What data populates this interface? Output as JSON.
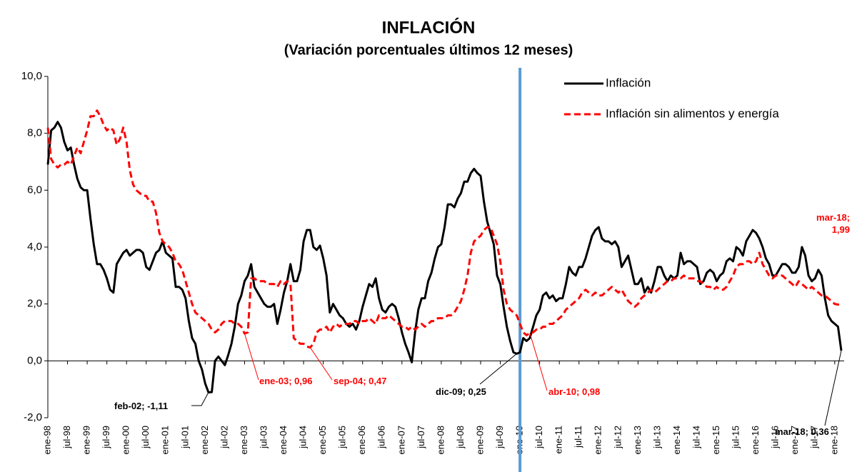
{
  "chart_data": {
    "type": "line",
    "title": "INFLACIÓN",
    "subtitle": "(Variación porcentuales últimos 12 meses)",
    "categories": [
      "ene-98",
      null,
      null,
      null,
      null,
      null,
      "jul-98",
      null,
      null,
      null,
      null,
      null,
      "ene-99",
      null,
      null,
      null,
      null,
      null,
      "jul-99",
      null,
      null,
      null,
      null,
      null,
      "ene-00",
      null,
      null,
      null,
      null,
      null,
      "jul-00",
      null,
      null,
      null,
      null,
      null,
      "ene-01",
      null,
      null,
      null,
      null,
      null,
      "jul-01",
      null,
      null,
      null,
      null,
      null,
      "ene-02",
      null,
      null,
      null,
      null,
      null,
      "jul-02",
      null,
      null,
      null,
      null,
      null,
      "ene-03",
      null,
      null,
      null,
      null,
      null,
      "jul-03",
      null,
      null,
      null,
      null,
      null,
      "ene-04",
      null,
      null,
      null,
      null,
      null,
      "jul-04",
      null,
      null,
      null,
      null,
      null,
      "ene-05",
      null,
      null,
      null,
      null,
      null,
      "jul-05",
      null,
      null,
      null,
      null,
      null,
      "ene-06",
      null,
      null,
      null,
      null,
      null,
      "jul-06",
      null,
      null,
      null,
      null,
      null,
      "ene-07",
      null,
      null,
      null,
      null,
      null,
      "jul-07",
      null,
      null,
      null,
      null,
      null,
      "ene-08",
      null,
      null,
      null,
      null,
      null,
      "jul-08",
      null,
      null,
      null,
      null,
      null,
      "ene-09",
      null,
      null,
      null,
      null,
      null,
      "jul-09",
      null,
      null,
      null,
      null,
      null,
      "ene-10",
      null,
      null,
      null,
      null,
      null,
      "jul-10",
      null,
      null,
      null,
      null,
      null,
      "ene-11",
      null,
      null,
      null,
      null,
      null,
      "jul-11",
      null,
      null,
      null,
      null,
      null,
      "ene-12",
      null,
      null,
      null,
      null,
      null,
      "jul-12",
      null,
      null,
      null,
      null,
      null,
      "ene-13",
      null,
      null,
      null,
      null,
      null,
      "jul-13",
      null,
      null,
      null,
      null,
      null,
      "ene-14",
      null,
      null,
      null,
      null,
      null,
      "jul-14",
      null,
      null,
      null,
      null,
      null,
      "ene-15",
      null,
      null,
      null,
      null,
      null,
      "jul-15",
      null,
      null,
      null,
      null,
      null,
      "ene-16",
      null,
      null,
      null,
      null,
      null,
      "jul-16",
      null,
      null,
      null,
      null,
      null,
      "ene-17",
      null,
      null,
      null,
      null,
      null,
      "jul-17",
      null,
      null,
      null,
      null,
      null,
      "ene-18",
      null,
      null
    ],
    "series": [
      {
        "name": "Inflación",
        "color": "#000000",
        "dash": false,
        "values": [
          6.9,
          8.1,
          8.2,
          8.4,
          8.2,
          7.7,
          7.4,
          7.5,
          6.9,
          6.4,
          6.1,
          6.0,
          6.0,
          5.0,
          4.1,
          3.4,
          3.4,
          3.2,
          2.9,
          2.5,
          2.4,
          3.4,
          3.6,
          3.8,
          3.9,
          3.7,
          3.8,
          3.9,
          3.9,
          3.8,
          3.3,
          3.2,
          3.5,
          3.8,
          3.9,
          4.2,
          3.8,
          3.7,
          3.6,
          2.6,
          2.6,
          2.5,
          2.2,
          1.4,
          0.8,
          0.6,
          0,
          -0.3,
          -0.8,
          -1.11,
          -1.1,
          0,
          0.15,
          0,
          -0.15,
          0.2,
          0.6,
          1.2,
          2.0,
          2.3,
          2.8,
          3.0,
          3.4,
          2.6,
          2.4,
          2.2,
          2.0,
          1.9,
          1.9,
          2.0,
          1.3,
          1.8,
          2.4,
          2.8,
          3.4,
          2.8,
          2.8,
          3.2,
          4.2,
          4.6,
          4.6,
          4.0,
          3.9,
          4.05,
          3.6,
          3.0,
          1.7,
          2.0,
          1.8,
          1.6,
          1.5,
          1.3,
          1.2,
          1.3,
          1.1,
          1.4,
          1.9,
          2.3,
          2.7,
          2.6,
          2.9,
          2.2,
          1.8,
          1.7,
          1.9,
          2.0,
          1.9,
          1.5,
          1.0,
          0.6,
          0.3,
          -0.05,
          1.0,
          1.8,
          2.2,
          2.2,
          2.8,
          3.1,
          3.6,
          4.0,
          4.1,
          4.7,
          5.5,
          5.5,
          5.4,
          5.7,
          5.9,
          6.3,
          6.3,
          6.6,
          6.75,
          6.6,
          6.5,
          5.6,
          4.9,
          4.5,
          4.1,
          3.0,
          2.7,
          1.9,
          1.2,
          0.7,
          0.3,
          0.25,
          0.3,
          0.8,
          0.7,
          0.8,
          1.2,
          1.6,
          1.8,
          2.3,
          2.4,
          2.2,
          2.3,
          2.1,
          2.2,
          2.2,
          2.7,
          3.3,
          3.1,
          3.0,
          3.3,
          3.3,
          3.6,
          4.0,
          4.4,
          4.6,
          4.7,
          4.3,
          4.2,
          4.2,
          4.1,
          4.2,
          4.0,
          3.3,
          3.5,
          3.7,
          3.2,
          2.7,
          2.7,
          2.9,
          2.4,
          2.6,
          2.4,
          2.8,
          3.3,
          3.3,
          3.0,
          2.8,
          3.0,
          2.9,
          3.0,
          3.8,
          3.4,
          3.5,
          3.5,
          3.4,
          3.3,
          2.7,
          2.8,
          3.1,
          3.2,
          3.1,
          2.8,
          3.0,
          3.1,
          3.5,
          3.6,
          3.5,
          4.0,
          3.9,
          3.7,
          4.2,
          4.4,
          4.6,
          4.5,
          4.3,
          4.0,
          3.6,
          3.4,
          3.0,
          3.0,
          3.2,
          3.4,
          3.4,
          3.3,
          3.1,
          3.1,
          3.3,
          4.0,
          3.7,
          3.0,
          2.8,
          2.9,
          3.2,
          3.0,
          2.2,
          1.6,
          1.4,
          1.3,
          1.2,
          0.36
        ],
        "value_labels": [
          null,
          null,
          null,
          null,
          null,
          null,
          null,
          null,
          null,
          null,
          null,
          null,
          null,
          null,
          null,
          null,
          null,
          null,
          null,
          null,
          null,
          null,
          null,
          null,
          null,
          null,
          null,
          null,
          null,
          null,
          null,
          null,
          null,
          null,
          null,
          null,
          null,
          null,
          null,
          null,
          null,
          null,
          null,
          null,
          null,
          null,
          null,
          null,
          null,
          "feb-02; -1,11",
          null,
          null,
          null,
          null,
          null,
          null,
          null,
          null,
          null,
          null,
          null,
          null,
          null,
          null,
          null,
          null,
          null,
          null,
          null,
          null,
          null,
          null,
          null,
          null,
          null,
          null,
          null,
          null,
          null,
          null,
          null,
          null,
          null,
          null,
          null,
          null,
          null,
          null,
          null,
          null,
          null,
          null,
          null,
          null,
          null,
          null,
          null,
          null,
          null,
          null,
          null,
          null,
          null,
          null,
          null,
          null,
          null,
          null,
          null,
          null,
          null,
          null,
          null,
          null,
          null,
          null,
          null,
          null,
          null,
          null,
          null,
          null,
          null,
          null,
          null,
          null,
          null,
          null,
          null,
          null,
          null,
          null,
          null,
          null,
          null,
          null,
          null,
          null,
          null,
          null,
          null,
          null,
          null,
          "dic-09; 0,25",
          null,
          null,
          null,
          null,
          null,
          null,
          null,
          null,
          null,
          null,
          null,
          null,
          null,
          null,
          null,
          null,
          null,
          null,
          null,
          null,
          null,
          null,
          null,
          null,
          null,
          null,
          null,
          null,
          null,
          null,
          null,
          null,
          null,
          null,
          null,
          null,
          null,
          null,
          null,
          null,
          null,
          null,
          null,
          null,
          null,
          null,
          null,
          null,
          null,
          null,
          null,
          null,
          null,
          null,
          null,
          null,
          null,
          null,
          null,
          null,
          null,
          null,
          null,
          null,
          null,
          null,
          null,
          null,
          null,
          null,
          null,
          null,
          null,
          null,
          null,
          null,
          null,
          null,
          null,
          null,
          null,
          null,
          null,
          null,
          null,
          null,
          null,
          null,
          null,
          null,
          null,
          null,
          null,
          null,
          null,
          null,
          null,
          null,
          "mar-18; 0,36"
        ]
      },
      {
        "name": "Inflación sin alimentos y energía",
        "color": "#ff0000",
        "dash": true,
        "values": [
          8.2,
          7.1,
          6.9,
          6.8,
          6.9,
          6.9,
          7.0,
          6.9,
          7.2,
          7.5,
          7.3,
          7.7,
          8.1,
          8.6,
          8.6,
          8.8,
          8.6,
          8.3,
          8.1,
          8.2,
          8.1,
          7.6,
          7.8,
          8.2,
          7.7,
          6.7,
          6.2,
          6.0,
          5.9,
          5.8,
          5.8,
          5.6,
          5.6,
          5.2,
          4.5,
          4.2,
          4.1,
          4.0,
          3.8,
          3.5,
          3.4,
          3.2,
          2.8,
          2.4,
          2.0,
          1.7,
          1.6,
          1.5,
          1.4,
          1.3,
          1.1,
          1.0,
          1.1,
          1.3,
          1.4,
          1.4,
          1.4,
          1.3,
          1.3,
          1.2,
          0.96,
          1.0,
          2.9,
          2.9,
          2.8,
          2.8,
          2.8,
          2.7,
          2.7,
          2.7,
          2.6,
          2.8,
          2.7,
          2.8,
          2.7,
          0.8,
          0.7,
          0.6,
          0.6,
          0.5,
          0.47,
          0.6,
          1.0,
          1.1,
          1.1,
          1.2,
          1.0,
          1.2,
          1.3,
          1.2,
          1.3,
          1.3,
          1.3,
          1.4,
          1.4,
          1.3,
          1.4,
          1.4,
          1.5,
          1.4,
          1.3,
          1.6,
          1.5,
          1.5,
          1.6,
          1.5,
          1.4,
          1.3,
          1.2,
          1.2,
          1.1,
          1.2,
          1.1,
          1.2,
          1.3,
          1.2,
          1.3,
          1.4,
          1.4,
          1.5,
          1.5,
          1.5,
          1.6,
          1.6,
          1.7,
          1.9,
          2.1,
          2.5,
          3.0,
          3.8,
          4.2,
          4.3,
          4.4,
          4.6,
          4.7,
          4.7,
          4.4,
          4.1,
          3.5,
          2.5,
          2.0,
          1.8,
          1.7,
          1.6,
          1.3,
          1.0,
          0.9,
          0.98,
          1.0,
          1.1,
          1.1,
          1.2,
          1.2,
          1.3,
          1.3,
          1.4,
          1.5,
          1.6,
          1.8,
          1.9,
          2.0,
          2.1,
          2.2,
          2.4,
          2.5,
          2.4,
          2.3,
          2.4,
          2.3,
          2.3,
          2.4,
          2.5,
          2.6,
          2.5,
          2.4,
          2.5,
          2.3,
          2.1,
          2.0,
          1.9,
          2.0,
          2.2,
          2.3,
          2.4,
          2.5,
          2.4,
          2.5,
          2.6,
          2.7,
          2.8,
          2.8,
          2.9,
          2.9,
          2.9,
          3.0,
          2.9,
          2.9,
          2.9,
          2.8,
          2.8,
          2.7,
          2.6,
          2.6,
          2.5,
          2.6,
          2.5,
          2.5,
          2.6,
          2.8,
          3.0,
          3.3,
          3.4,
          3.4,
          3.5,
          3.5,
          3.4,
          3.5,
          3.8,
          3.4,
          3.2,
          3.0,
          2.9,
          3.0,
          3.0,
          3.0,
          2.9,
          2.8,
          2.7,
          2.6,
          2.8,
          2.7,
          2.6,
          2.5,
          2.6,
          2.5,
          2.4,
          2.3,
          2.3,
          2.2,
          2.1,
          2.0,
          1.98,
          1.99
        ],
        "value_labels": [
          null,
          null,
          null,
          null,
          null,
          null,
          null,
          null,
          null,
          null,
          null,
          null,
          null,
          null,
          null,
          null,
          null,
          null,
          null,
          null,
          null,
          null,
          null,
          null,
          null,
          null,
          null,
          null,
          null,
          null,
          null,
          null,
          null,
          null,
          null,
          null,
          null,
          null,
          null,
          null,
          null,
          null,
          null,
          null,
          null,
          null,
          null,
          null,
          null,
          null,
          null,
          null,
          null,
          null,
          null,
          null,
          null,
          null,
          null,
          null,
          "ene-03; 0,96",
          null,
          null,
          null,
          null,
          null,
          null,
          null,
          null,
          null,
          null,
          null,
          null,
          null,
          null,
          null,
          null,
          null,
          null,
          null,
          "sep-04; 0,47",
          null,
          null,
          null,
          null,
          null,
          null,
          null,
          null,
          null,
          null,
          null,
          null,
          null,
          null,
          null,
          null,
          null,
          null,
          null,
          null,
          null,
          null,
          null,
          null,
          null,
          null,
          null,
          null,
          null,
          null,
          null,
          null,
          null,
          null,
          null,
          null,
          null,
          null,
          null,
          null,
          null,
          null,
          null,
          null,
          null,
          null,
          null,
          null,
          null,
          null,
          null,
          null,
          null,
          null,
          null,
          null,
          null,
          null,
          null,
          null,
          null,
          null,
          null,
          null,
          null,
          null,
          "abr-10; 0,98",
          null,
          null,
          null,
          null,
          null,
          null,
          null,
          null,
          null,
          null,
          null,
          null,
          null,
          null,
          null,
          null,
          null,
          null,
          null,
          null,
          null,
          null,
          null,
          null,
          null,
          null,
          null,
          null,
          null,
          null,
          null,
          null,
          null,
          null,
          null,
          null,
          null,
          null,
          null,
          null,
          null,
          null,
          null,
          null,
          null,
          null,
          null,
          null,
          null,
          null,
          null,
          null,
          null,
          null,
          null,
          null,
          null,
          null,
          null,
          null,
          null,
          null,
          null,
          null,
          null,
          null,
          null,
          null,
          null,
          null,
          null,
          null,
          null,
          null,
          null,
          null,
          null,
          null,
          null,
          null,
          null,
          null,
          null,
          null,
          null,
          null,
          null,
          null,
          null,
          null,
          null,
          null,
          null,
          null,
          "mar-18; 1,99"
        ]
      }
    ],
    "ylim": [
      -2,
      10
    ],
    "yticks": [
      {
        "value": -2,
        "label": "-2,0"
      },
      {
        "value": 0,
        "label": "0,0"
      },
      {
        "value": 2,
        "label": "2,0"
      },
      {
        "value": 4,
        "label": "4,0"
      },
      {
        "value": 6,
        "label": "6,0"
      },
      {
        "value": 8,
        "label": "8,0"
      },
      {
        "value": 10,
        "label": "10,0"
      }
    ],
    "grid": false,
    "legend": "upper-right",
    "vline": {
      "category": "ene-10",
      "color": "#5b9bd5"
    }
  }
}
